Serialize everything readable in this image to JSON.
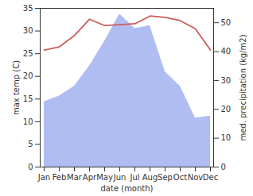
{
  "chart_data": {
    "type": "line",
    "x_label": "date (month)",
    "y_label": "max temp (C)",
    "y2_label": "med. precipitation (kg/m2)",
    "categories": [
      "Jan",
      "Feb",
      "Mar",
      "Apr",
      "May",
      "Jun",
      "Jul",
      "Aug",
      "Sep",
      "Oct",
      "Nov",
      "Dec"
    ],
    "series": [
      {
        "name": "med. precipitation (kg/m2)",
        "type": "area",
        "axis": "y2",
        "color": "#b0bdf2",
        "values": [
          22.6,
          24.6,
          28,
          35,
          43.6,
          53,
          48,
          49,
          33,
          28,
          17,
          17.7
        ]
      },
      {
        "name": "max temp (C)",
        "type": "line",
        "axis": "y",
        "color": "#cd5c5c",
        "values": [
          25.8,
          26.5,
          29,
          32.6,
          31.2,
          31.4,
          31.6,
          33.3,
          33,
          32.3,
          30.5,
          25.8
        ]
      }
    ],
    "ylim": [
      0,
      35
    ],
    "yticks": [
      0,
      5,
      10,
      15,
      20,
      25,
      30,
      35
    ],
    "y2lim": [
      0,
      55
    ],
    "y2ticks": [
      0,
      10,
      20,
      30,
      40,
      50
    ],
    "grid": false
  }
}
